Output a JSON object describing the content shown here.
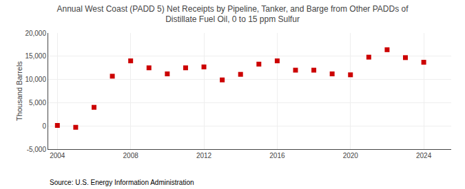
{
  "chart_data": {
    "type": "scatter",
    "title": "Annual West Coast (PADD 5) Net Receipts by Pipeline, Tanker, and Barge from Other PADDs of\nDistillate Fuel Oil, 0 to 15 ppm Sulfur",
    "ylabel": "Thousand Barrels",
    "annotations": [
      "Source: U.S. Energy Information Administration"
    ],
    "x": [
      2004,
      2005,
      2006,
      2007,
      2008,
      2009,
      2010,
      2011,
      2012,
      2013,
      2014,
      2015,
      2016,
      2017,
      2018,
      2019,
      2020,
      2021,
      2022,
      2023,
      2024
    ],
    "values": [
      100,
      -300,
      4000,
      10700,
      14000,
      12500,
      11200,
      12500,
      12700,
      9900,
      11100,
      13300,
      14000,
      12000,
      12000,
      11200,
      11000,
      14800,
      16400,
      14700,
      13700
    ],
    "color": "#cc0000",
    "marker": "square",
    "xlim": [
      2003.5,
      2025.5
    ],
    "ylim": [
      -5000,
      20000
    ],
    "xticks": [
      2004,
      2008,
      2012,
      2016,
      2020,
      2024
    ],
    "yticks": [
      {
        "value": -5000,
        "label": "-5,000"
      },
      0,
      {
        "value": 5000,
        "label": "5,000"
      },
      {
        "value": 10000,
        "label": "10,000"
      },
      {
        "value": 15000,
        "label": "15,000"
      },
      {
        "value": 20000,
        "label": "20,000"
      }
    ],
    "grid": true
  }
}
